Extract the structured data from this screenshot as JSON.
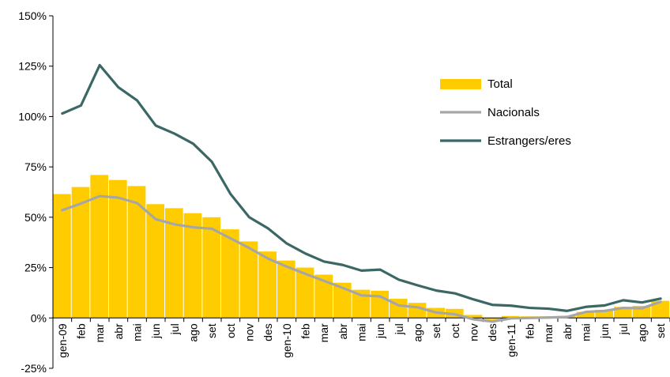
{
  "chart_data": {
    "type": "bar+line",
    "categories": [
      "gen-09",
      "feb",
      "mar",
      "abr",
      "mai",
      "jun",
      "jul",
      "ago",
      "set",
      "oct",
      "nov",
      "des",
      "gen-10",
      "feb",
      "mar",
      "abr",
      "mai",
      "jun",
      "jul",
      "ago",
      "set",
      "oct",
      "nov",
      "des",
      "gen-11",
      "feb",
      "mar",
      "abr",
      "mai",
      "jun",
      "jul",
      "ago",
      "set"
    ],
    "series": [
      {
        "name": "Total",
        "kind": "bar",
        "color": "#FFCC00",
        "values": [
          61.5,
          65.0,
          71.0,
          68.5,
          65.5,
          56.5,
          54.5,
          52.0,
          50.0,
          44.0,
          38.0,
          33.0,
          28.5,
          25.0,
          21.5,
          17.5,
          14.0,
          13.5,
          9.5,
          7.5,
          5.0,
          4.5,
          1.5,
          -1.0,
          1.0,
          0.8,
          0.8,
          1.0,
          3.0,
          4.0,
          5.5,
          6.0,
          8.5
        ]
      },
      {
        "name": "Nacionals",
        "kind": "line",
        "color": "#A6A6A6",
        "values": [
          53.5,
          56.8,
          60.5,
          59.7,
          57.0,
          49.0,
          46.5,
          45.0,
          44.3,
          39.5,
          34.7,
          29.5,
          25.5,
          21.9,
          18.4,
          14.9,
          11.2,
          10.7,
          6.2,
          5.3,
          2.7,
          1.8,
          -0.7,
          -1.8,
          -0.2,
          0.0,
          0.2,
          0.5,
          3.0,
          3.5,
          5.0,
          4.8,
          8.0
        ]
      },
      {
        "name": "Estrangers/eres",
        "kind": "line",
        "color": "#3B6865",
        "values": [
          101.5,
          105.5,
          125.5,
          114.5,
          108.0,
          95.5,
          91.5,
          86.5,
          77.5,
          61.5,
          50.0,
          44.5,
          37.0,
          32.0,
          28.0,
          26.3,
          23.5,
          24.0,
          19.0,
          16.2,
          13.6,
          12.2,
          9.2,
          6.5,
          6.1,
          5.0,
          4.6,
          3.5,
          5.5,
          6.2,
          8.8,
          7.7,
          9.6
        ]
      }
    ],
    "yaxis": {
      "min": -25,
      "max": 150,
      "ticks": [
        -25,
        0,
        25,
        50,
        75,
        100,
        125,
        150
      ],
      "tick_labels": [
        "-25%",
        "0%",
        "25%",
        "50%",
        "75%",
        "100%",
        "125%",
        "150%"
      ]
    },
    "legend_position": "right",
    "grid": false
  }
}
